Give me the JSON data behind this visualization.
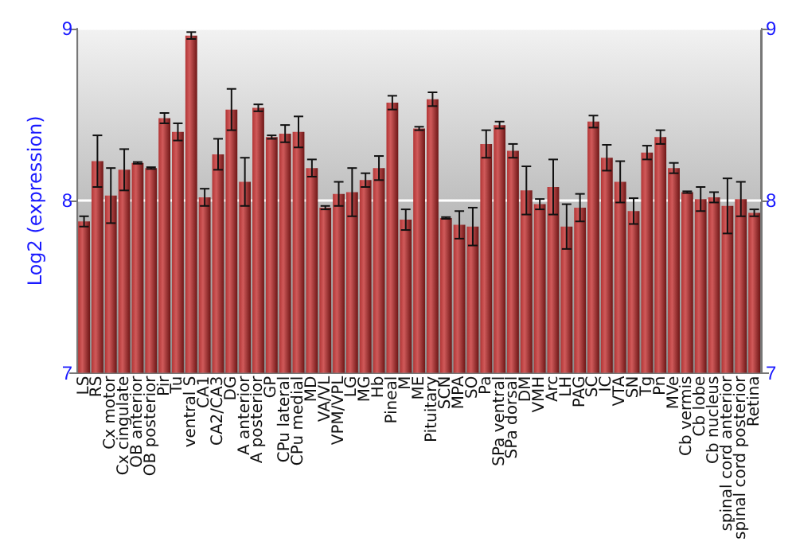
{
  "chart_data": {
    "type": "bar",
    "ylabel": "Log2 (expression)",
    "categories": [
      "LS",
      "RS",
      "Cx motor",
      "Cx cingulate",
      "OB anterior",
      "OB posterior",
      "Pir",
      "Tu",
      "ventral S",
      "CA1",
      "CA2/CA3",
      "DG",
      "A anterior",
      "A posterior",
      "GP",
      "CPu lateral",
      "CPu medial",
      "MD",
      "VA/VL",
      "VPM/VPL",
      "LG",
      "MG",
      "Hb",
      "Pineal",
      "M",
      "ME",
      "Pituitary",
      "SCN",
      "MPA",
      "SO",
      "Pa",
      "SPa ventral",
      "SPa dorsal",
      "DM",
      "VMH",
      "Arc",
      "LH",
      "PAG",
      "SC",
      "IC",
      "VTA",
      "SN",
      "Tg",
      "Pn",
      "MVe",
      "Cb vermis",
      "Cb lobe",
      "Cb nucleus",
      "spinal cord anterior",
      "spinal cord posterior",
      "Retina"
    ],
    "values": [
      7.88,
      8.23,
      8.03,
      8.18,
      8.22,
      8.19,
      8.48,
      8.4,
      8.96,
      8.02,
      8.27,
      8.53,
      8.11,
      8.54,
      8.37,
      8.39,
      8.4,
      8.19,
      7.96,
      8.04,
      8.05,
      8.12,
      8.19,
      8.57,
      7.89,
      8.42,
      8.59,
      7.9,
      7.86,
      7.85,
      8.33,
      8.44,
      8.29,
      8.06,
      7.98,
      8.08,
      7.85,
      7.96,
      8.46,
      8.25,
      8.11,
      7.94,
      8.28,
      8.37,
      8.19,
      8.05,
      8.01,
      8.02,
      7.97,
      8.01,
      7.93
    ],
    "errors": [
      0.03,
      0.15,
      0.16,
      0.12,
      0.005,
      0.005,
      0.03,
      0.05,
      0.02,
      0.05,
      0.09,
      0.12,
      0.14,
      0.02,
      0.01,
      0.05,
      0.09,
      0.05,
      0.01,
      0.07,
      0.14,
      0.04,
      0.07,
      0.04,
      0.06,
      0.01,
      0.04,
      0.005,
      0.08,
      0.11,
      0.08,
      0.02,
      0.04,
      0.14,
      0.03,
      0.16,
      0.13,
      0.08,
      0.035,
      0.075,
      0.12,
      0.075,
      0.04,
      0.04,
      0.03,
      0.005,
      0.07,
      0.03,
      0.16,
      0.1,
      0.02
    ],
    "color": "#b23535",
    "ylim": [
      7,
      9
    ],
    "yticks": [
      7,
      8,
      9
    ],
    "y2lim": [
      7,
      9
    ],
    "y2ticks": [
      7,
      8,
      9
    ],
    "grid": "y"
  }
}
